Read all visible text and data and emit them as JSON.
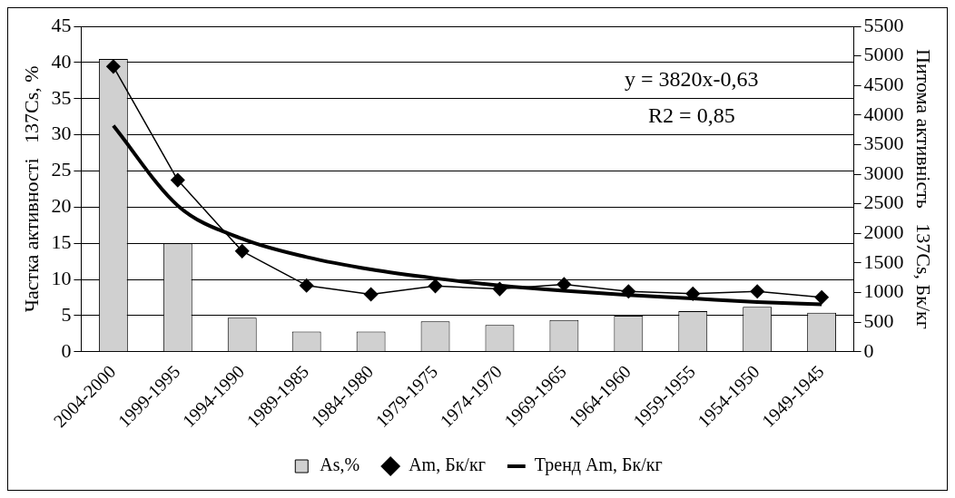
{
  "chart_data": {
    "type": "bar",
    "categories": [
      "2004-2000",
      "1999-1995",
      "1994-1990",
      "1989-1985",
      "1984-1980",
      "1979-1975",
      "1974-1970",
      "1969-1965",
      "1964-1960",
      "1959-1955",
      "1954-1950",
      "1949-1945"
    ],
    "series": [
      {
        "name": "As,%",
        "color": "#d0d0d0",
        "values": [
          40.5,
          15,
          4.7,
          2.8,
          2.8,
          4.2,
          3.7,
          4.4,
          5.0,
          5.6,
          6.2,
          5.4
        ]
      },
      {
        "name": "Am, Бк/кг",
        "type": "line",
        "axis": "y2",
        "color": "#000000",
        "marker": "diamond",
        "values": [
          4820,
          2900,
          1700,
          1120,
          970,
          1110,
          1060,
          1140,
          1020,
          980,
          1020,
          920
        ]
      },
      {
        "name": "Тренд Am, Бк/кг",
        "type": "line",
        "axis": "y2",
        "color": "#000000",
        "marker": "none",
        "values": [
          3820,
          2470,
          1910,
          1600,
          1390,
          1240,
          1120,
          1030,
          960,
          900,
          840,
          800
        ]
      }
    ],
    "ylabel": "Частка активності   137Cs, %",
    "y2label": "Питома активність   137Cs, Бк/кг",
    "ylim": [
      0,
      45
    ],
    "yticks": [
      0,
      5,
      10,
      15,
      20,
      25,
      30,
      35,
      40,
      45
    ],
    "y2lim": [
      0,
      5500
    ],
    "y2ticks": [
      0,
      500,
      1000,
      1500,
      2000,
      2500,
      3000,
      3500,
      4000,
      4500,
      5000,
      5500
    ],
    "annotations": [
      "y = 3820x-0,63",
      "R2 = 0,85"
    ],
    "grid": "y",
    "legend": "bottom"
  }
}
